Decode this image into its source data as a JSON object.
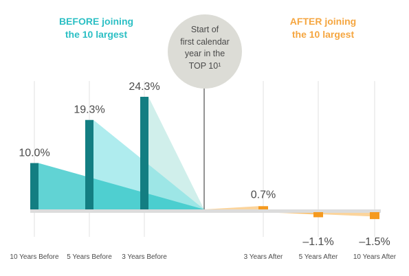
{
  "headers": {
    "before": [
      "BEFORE joining",
      "the 10 largest"
    ],
    "after": [
      "AFTER joining",
      "the 10 largest"
    ],
    "center": [
      "Start of",
      "first calendar",
      "year in the",
      "TOP 10¹"
    ]
  },
  "colors": {
    "before_bar": "#137e82",
    "before_fill_light": "#3ac9c9",
    "after_bar": "#f59a1f",
    "after_fill": "#f7b04a",
    "before_header": "#2bbfc4",
    "after_header": "#f5a640",
    "circle": "#dcdcd6",
    "baseline": "#dcdcdc",
    "label": "#4a4a4a"
  },
  "chart_data": {
    "type": "bar",
    "categories": [
      "10 Years Before",
      "5 Years Before",
      "3 Years Before",
      "3 Years After",
      "5 Years After",
      "10 Years After"
    ],
    "values": [
      10.0,
      19.3,
      24.3,
      0.7,
      -1.1,
      -1.5
    ],
    "data_labels": [
      "10.0%",
      "19.3%",
      "24.3%",
      "0.7%",
      "–1.1%",
      "–1.5%"
    ],
    "ylim": [
      -2,
      26
    ],
    "grid": "vertical",
    "title": "",
    "xlabel": "",
    "ylabel": ""
  }
}
